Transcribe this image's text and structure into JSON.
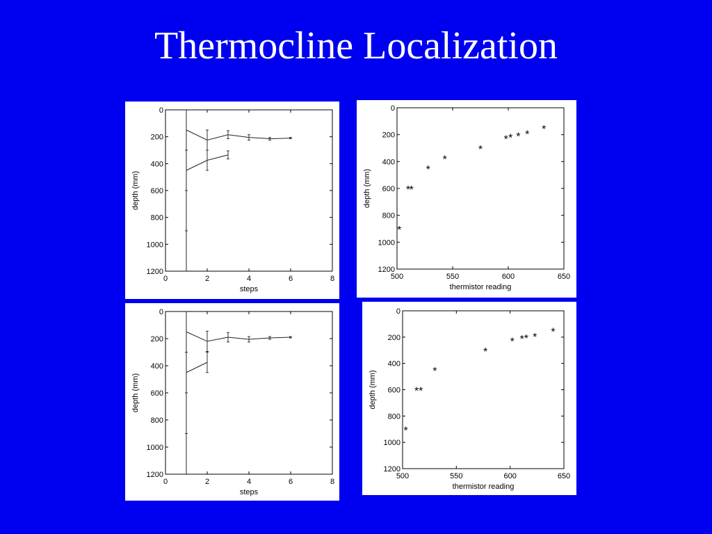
{
  "slide": {
    "title": "Thermocline Localization"
  },
  "chart_data": [
    {
      "type": "line",
      "xlabel": "steps",
      "ylabel": "depth (mm)",
      "xlim": [
        0,
        8
      ],
      "ylim": [
        0,
        1200
      ],
      "y_reversed": true,
      "grid": false,
      "xticks": [
        0,
        2,
        4,
        6,
        8
      ],
      "yticks": [
        0,
        200,
        400,
        600,
        800,
        1000,
        1200
      ],
      "series": [
        {
          "x": [
            1,
            1
          ],
          "y": [
            0,
            1200
          ]
        },
        {
          "x": [
            1,
            2,
            3,
            4,
            5,
            6
          ],
          "y": [
            150,
            225,
            185,
            205,
            215,
            210
          ],
          "err": [
            0,
            75,
            30,
            20,
            10,
            5
          ]
        },
        {
          "x": [
            1,
            2,
            3
          ],
          "y": [
            450,
            375,
            335
          ],
          "err": [
            0,
            75,
            30
          ]
        }
      ]
    },
    {
      "type": "scatter",
      "xlabel": "thermistor reading",
      "ylabel": "depth (mm)",
      "xlim": [
        500,
        650
      ],
      "ylim": [
        0,
        1200
      ],
      "y_reversed": true,
      "grid": false,
      "marker": "*",
      "xticks": [
        500,
        550,
        600,
        650
      ],
      "yticks": [
        0,
        200,
        400,
        600,
        800,
        1000,
        1200
      ],
      "series": [
        {
          "x": [
            502,
            510,
            513,
            528,
            543,
            575,
            598,
            602,
            609,
            617,
            632
          ],
          "y": [
            900,
            600,
            600,
            450,
            375,
            300,
            225,
            215,
            205,
            190,
            150
          ]
        }
      ]
    },
    {
      "type": "line",
      "xlabel": "steps",
      "ylabel": "depth (mm)",
      "xlim": [
        0,
        8
      ],
      "ylim": [
        0,
        1200
      ],
      "y_reversed": true,
      "grid": false,
      "xticks": [
        0,
        2,
        4,
        6,
        8
      ],
      "yticks": [
        0,
        200,
        400,
        600,
        800,
        1000,
        1200
      ],
      "series": [
        {
          "x": [
            1,
            1
          ],
          "y": [
            0,
            1200
          ]
        },
        {
          "x": [
            1,
            2,
            3,
            4,
            5,
            6
          ],
          "y": [
            150,
            220,
            190,
            205,
            195,
            190
          ],
          "err": [
            0,
            75,
            35,
            20,
            10,
            5
          ]
        },
        {
          "x": [
            1,
            2
          ],
          "y": [
            450,
            375
          ],
          "err": [
            0,
            75
          ]
        }
      ]
    },
    {
      "type": "scatter",
      "xlabel": "thermistor reading",
      "ylabel": "depth (mm)",
      "xlim": [
        500,
        650
      ],
      "ylim": [
        0,
        1200
      ],
      "y_reversed": true,
      "grid": false,
      "marker": "*",
      "xticks": [
        500,
        550,
        600,
        650
      ],
      "yticks": [
        0,
        200,
        400,
        600,
        800,
        1000,
        1200
      ],
      "series": [
        {
          "x": [
            503,
            513,
            517,
            530,
            577,
            602,
            611,
            615,
            623,
            640
          ],
          "y": [
            900,
            600,
            600,
            450,
            300,
            225,
            205,
            200,
            190,
            150
          ]
        }
      ]
    }
  ]
}
